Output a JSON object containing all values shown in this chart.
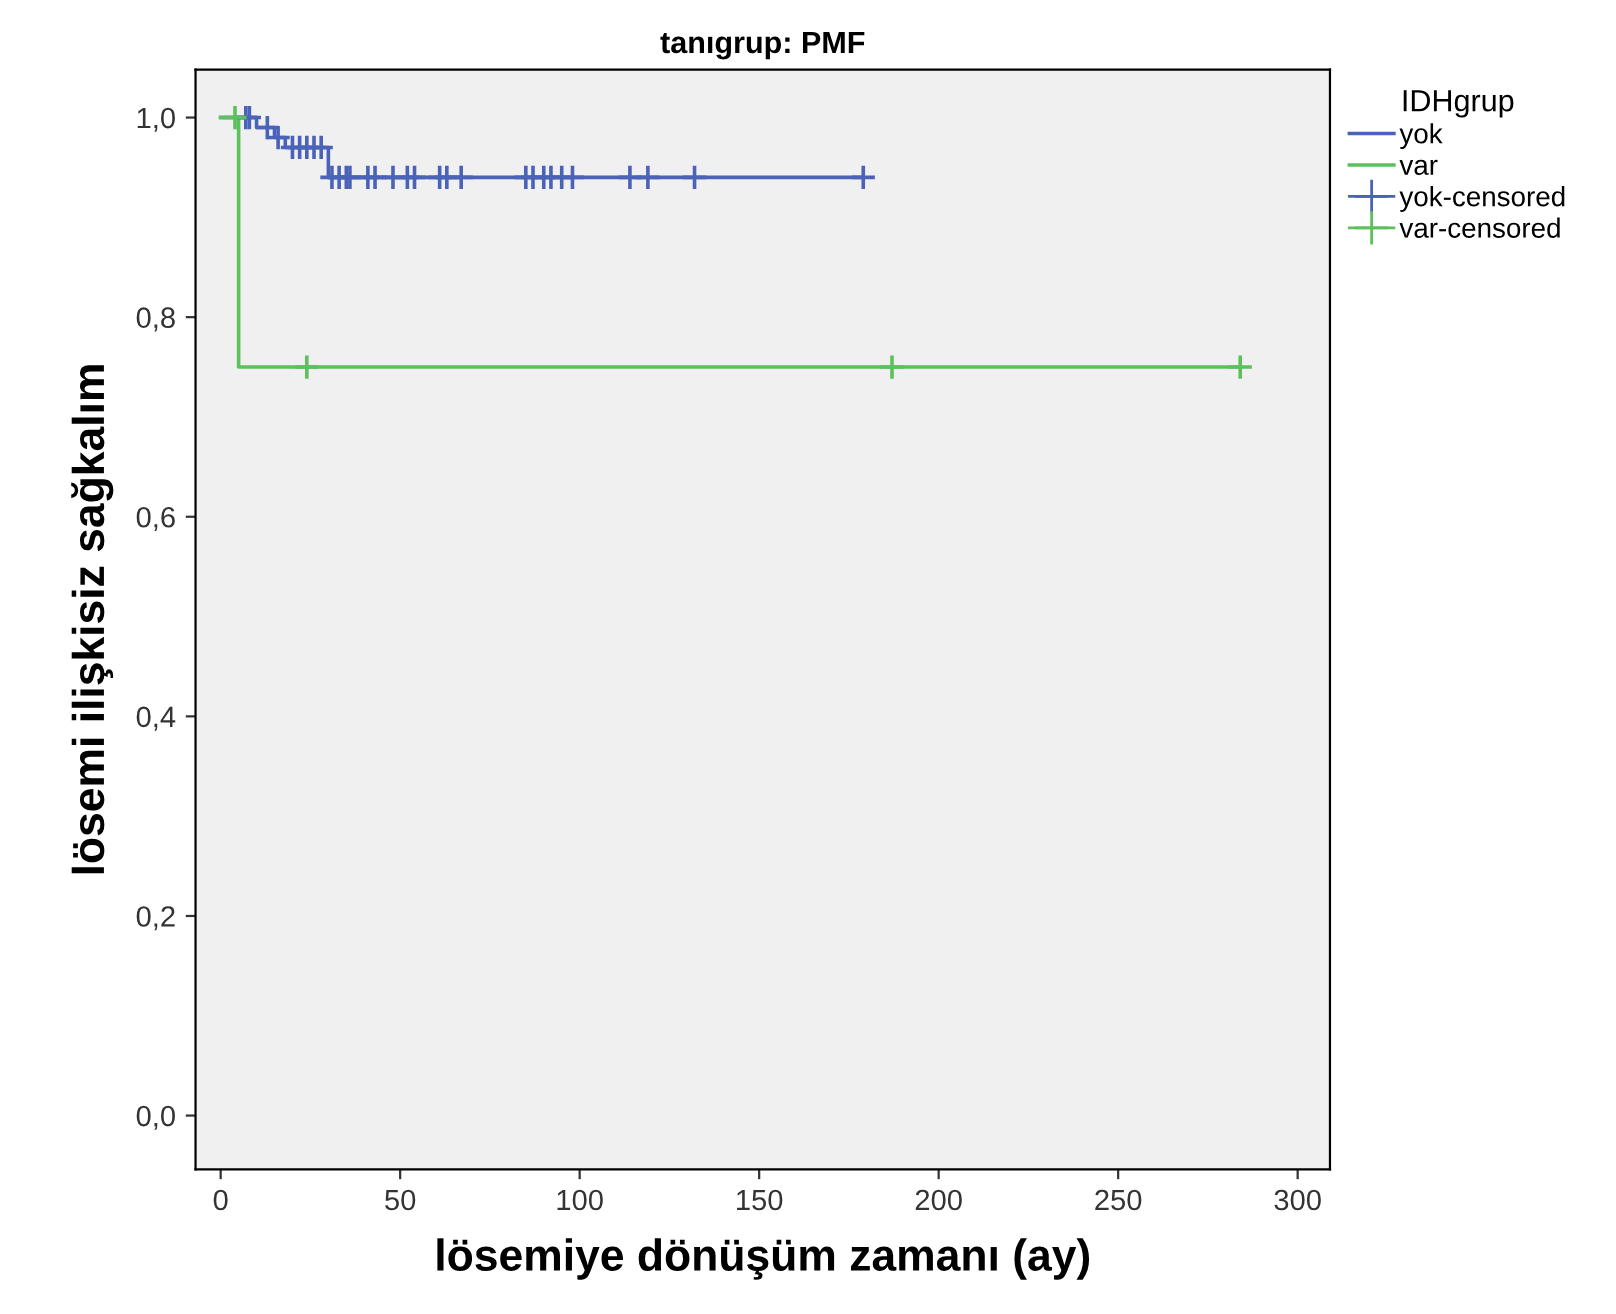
{
  "chart_data": {
    "type": "step",
    "title": "tanıgrup: PMF",
    "xlabel": "lösemiye dönüşüm zamanı (ay)",
    "ylabel": "lösemi ilişkisiz sağkalım",
    "legend_title": "IDHgrup",
    "legend": "right",
    "grid": false,
    "xlim": [
      -7,
      309
    ],
    "ylim": [
      -0.054,
      1.048
    ],
    "xticks": [
      0,
      50,
      100,
      150,
      200,
      250,
      300
    ],
    "yticks": [
      {
        "value": 0,
        "label": "0,0"
      },
      {
        "value": 0.2,
        "label": "0,2"
      },
      {
        "value": 0.4,
        "label": "0,4"
      },
      {
        "value": 0.6,
        "label": "0,6"
      },
      {
        "value": 0.8,
        "label": "0,8"
      },
      {
        "value": 1.0,
        "label": "1,0"
      }
    ],
    "series": [
      {
        "name": "yok",
        "color": "#4a63b8",
        "x": [
          0,
          10,
          15,
          18,
          30,
          179
        ],
        "values": [
          1.0,
          0.99,
          0.98,
          0.97,
          0.94,
          0.94
        ]
      },
      {
        "name": "var",
        "color": "#5cc05c",
        "x": [
          0,
          5,
          284
        ],
        "values": [
          1.0,
          0.75,
          0.75
        ]
      },
      {
        "name": "yok-censored",
        "type": "scatter",
        "marker": "cross",
        "color": "#4a63b8",
        "x": [
          7,
          8,
          13,
          16,
          20,
          22,
          24,
          26,
          28,
          31,
          33,
          35,
          36,
          41,
          43,
          48,
          52,
          54,
          61,
          63,
          67,
          85,
          87,
          90,
          92,
          95,
          98,
          114,
          119,
          132,
          179
        ],
        "values": [
          1.0,
          1.0,
          0.99,
          0.98,
          0.97,
          0.97,
          0.97,
          0.97,
          0.97,
          0.94,
          0.94,
          0.94,
          0.94,
          0.94,
          0.94,
          0.94,
          0.94,
          0.94,
          0.94,
          0.94,
          0.94,
          0.94,
          0.94,
          0.94,
          0.94,
          0.94,
          0.94,
          0.94,
          0.94,
          0.94,
          0.94
        ]
      },
      {
        "name": "var-censored",
        "type": "scatter",
        "marker": "cross",
        "color": "#5cc05c",
        "x": [
          4,
          24,
          187,
          284
        ],
        "values": [
          1.0,
          0.75,
          0.75,
          0.75
        ]
      }
    ]
  }
}
